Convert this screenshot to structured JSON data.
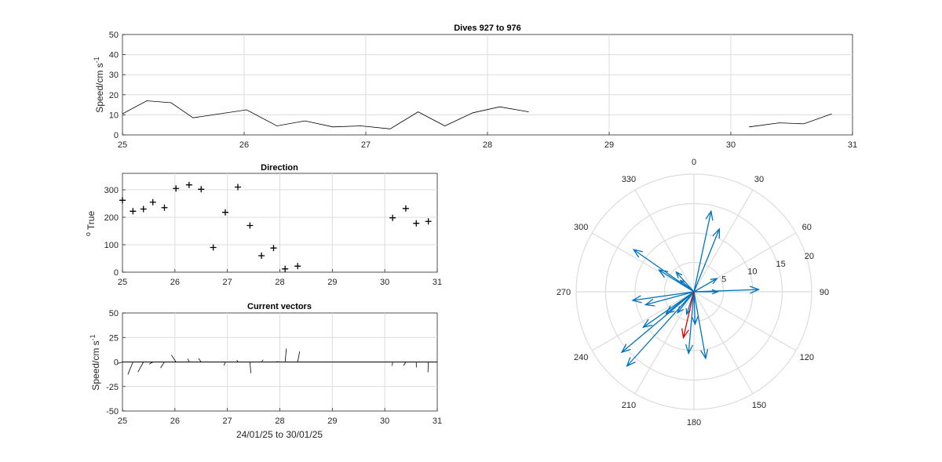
{
  "chart_data": [
    {
      "id": "speed",
      "type": "line",
      "title": "Dives 927 to 976",
      "ylabel": "Speed/cm s",
      "ylabel_sup": "-1",
      "xlim": [
        25,
        31
      ],
      "ylim": [
        0,
        50
      ],
      "xticks": [
        "25",
        "26",
        "27",
        "28",
        "29",
        "30",
        "31"
      ],
      "yticks": [
        "0",
        "10",
        "20",
        "30",
        "40",
        "50"
      ],
      "grid": true,
      "line_color": "#000000",
      "series": [
        {
          "x": [
            25.0,
            25.2,
            25.4,
            25.58,
            25.8,
            26.02,
            26.27,
            26.5,
            26.73,
            26.96,
            27.2,
            27.43,
            27.65,
            27.88,
            28.1,
            28.34
          ],
          "values": [
            10.5,
            17,
            16,
            8.5,
            10.5,
            12.5,
            4.5,
            7,
            4,
            4.5,
            3,
            11.5,
            4.5,
            11,
            14,
            11.5
          ]
        },
        {
          "x": [
            30.15,
            30.4,
            30.6,
            30.83
          ],
          "values": [
            4,
            6,
            5.5,
            10.5
          ]
        }
      ]
    },
    {
      "id": "direction",
      "type": "scatter",
      "title": "Direction",
      "ylabel": "True",
      "ylabel_prefix": "o",
      "xlim": [
        25,
        31
      ],
      "ylim": [
        0,
        360
      ],
      "xticks": [
        "25",
        "26",
        "27",
        "28",
        "29",
        "30",
        "31"
      ],
      "yticks": [
        "0",
        "100",
        "200",
        "300"
      ],
      "grid": true,
      "marker": "+",
      "x": [
        25.0,
        25.2,
        25.4,
        25.58,
        25.8,
        26.02,
        26.27,
        26.5,
        26.73,
        26.96,
        27.2,
        27.43,
        27.65,
        27.88,
        28.1,
        28.34,
        30.15,
        30.4,
        30.6,
        30.83
      ],
      "values": [
        262,
        222,
        230,
        255,
        235,
        305,
        318,
        302,
        90,
        218,
        310,
        170,
        60,
        88,
        12,
        22,
        198,
        232,
        178,
        185
      ]
    },
    {
      "id": "vectors",
      "type": "quiver",
      "title": "Current vectors",
      "ylabel": "Speed/cm s",
      "ylabel_sup": "-1",
      "xlabel": "24/01/25 to 30/01/25",
      "xlim": [
        25,
        31
      ],
      "ylim": [
        -50,
        50
      ],
      "xticks": [
        "25",
        "26",
        "27",
        "28",
        "29",
        "30",
        "31"
      ],
      "yticks": [
        "-50",
        "-25",
        "0",
        "25",
        "50"
      ],
      "grid": true,
      "color": "#000000",
      "note": "stick length scale: 1 cm/s = 0.0085 day on x"
    },
    {
      "id": "polar",
      "type": "compass",
      "theta_ticks": [
        "0",
        "30",
        "60",
        "90",
        "120",
        "150",
        "180",
        "210",
        "240",
        "270",
        "300",
        "330"
      ],
      "r_ticks": [
        "5",
        "10",
        "15",
        "20"
      ],
      "rmax": 20,
      "arrow_color": "#0072BD",
      "mean_color": "#D90000",
      "mean_vector": {
        "direction": 193,
        "speed": 8.0
      }
    }
  ]
}
